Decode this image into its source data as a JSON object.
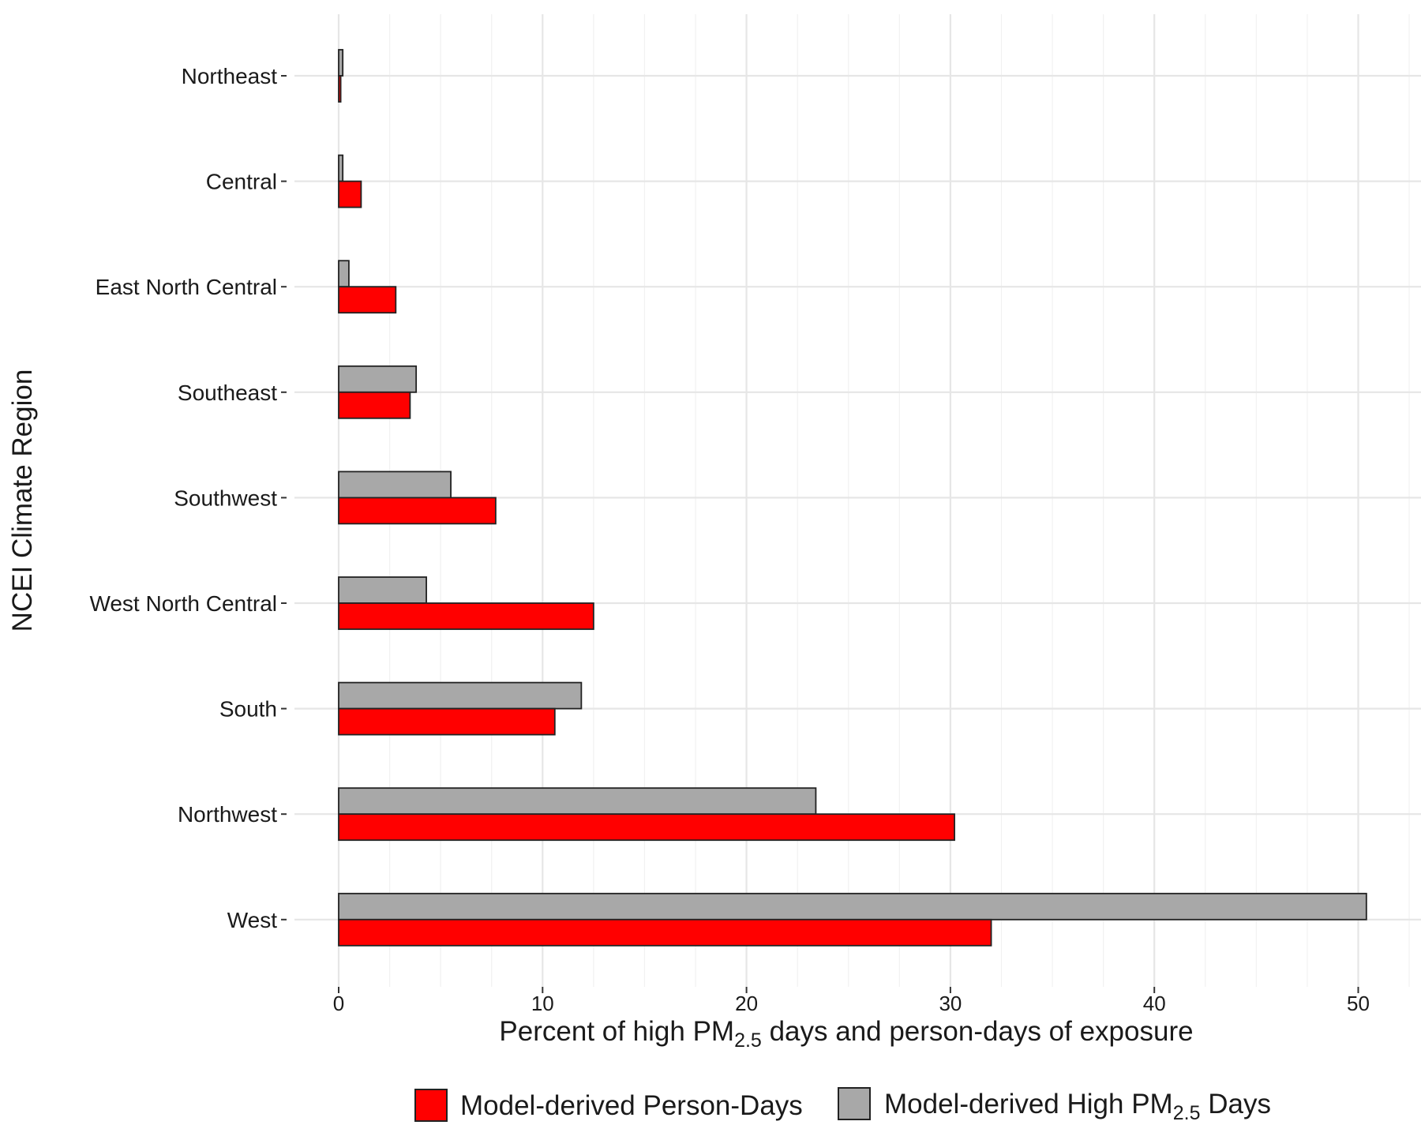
{
  "chart_data": {
    "type": "bar",
    "orientation": "horizontal",
    "categories": [
      "Northeast",
      "Central",
      "East North Central",
      "Southeast",
      "Southwest",
      "West North Central",
      "South",
      "Northwest",
      "West"
    ],
    "series": [
      {
        "name": "Model-derived High PM2.5 Days",
        "color": "#a8a8a8",
        "values": [
          0.2,
          0.2,
          0.5,
          3.8,
          5.5,
          4.3,
          11.9,
          23.4,
          50.4
        ]
      },
      {
        "name": "Model-derived Person-Days",
        "color": "#ff0000",
        "values": [
          0.1,
          1.1,
          2.8,
          3.5,
          7.7,
          12.5,
          10.6,
          30.2,
          32.0
        ]
      }
    ],
    "xlim": [
      0,
      50
    ],
    "xticks": [
      "0",
      "10",
      "20",
      "30",
      "40",
      "50"
    ],
    "xlabel": {
      "prefix": "Percent of high PM",
      "subscript": "2.5",
      "suffix": " days and person-days of exposure"
    },
    "ylabel": "NCEI Climate Region",
    "grid": true,
    "legend": {
      "placement": "bottom",
      "items": [
        {
          "prefix": "Model-derived Person-Days",
          "subscript": "",
          "suffix": "",
          "color": "#ff0000"
        },
        {
          "prefix": "Model-derived High PM",
          "subscript": "2.5",
          "suffix": " Days",
          "color": "#a8a8a8"
        }
      ]
    }
  }
}
